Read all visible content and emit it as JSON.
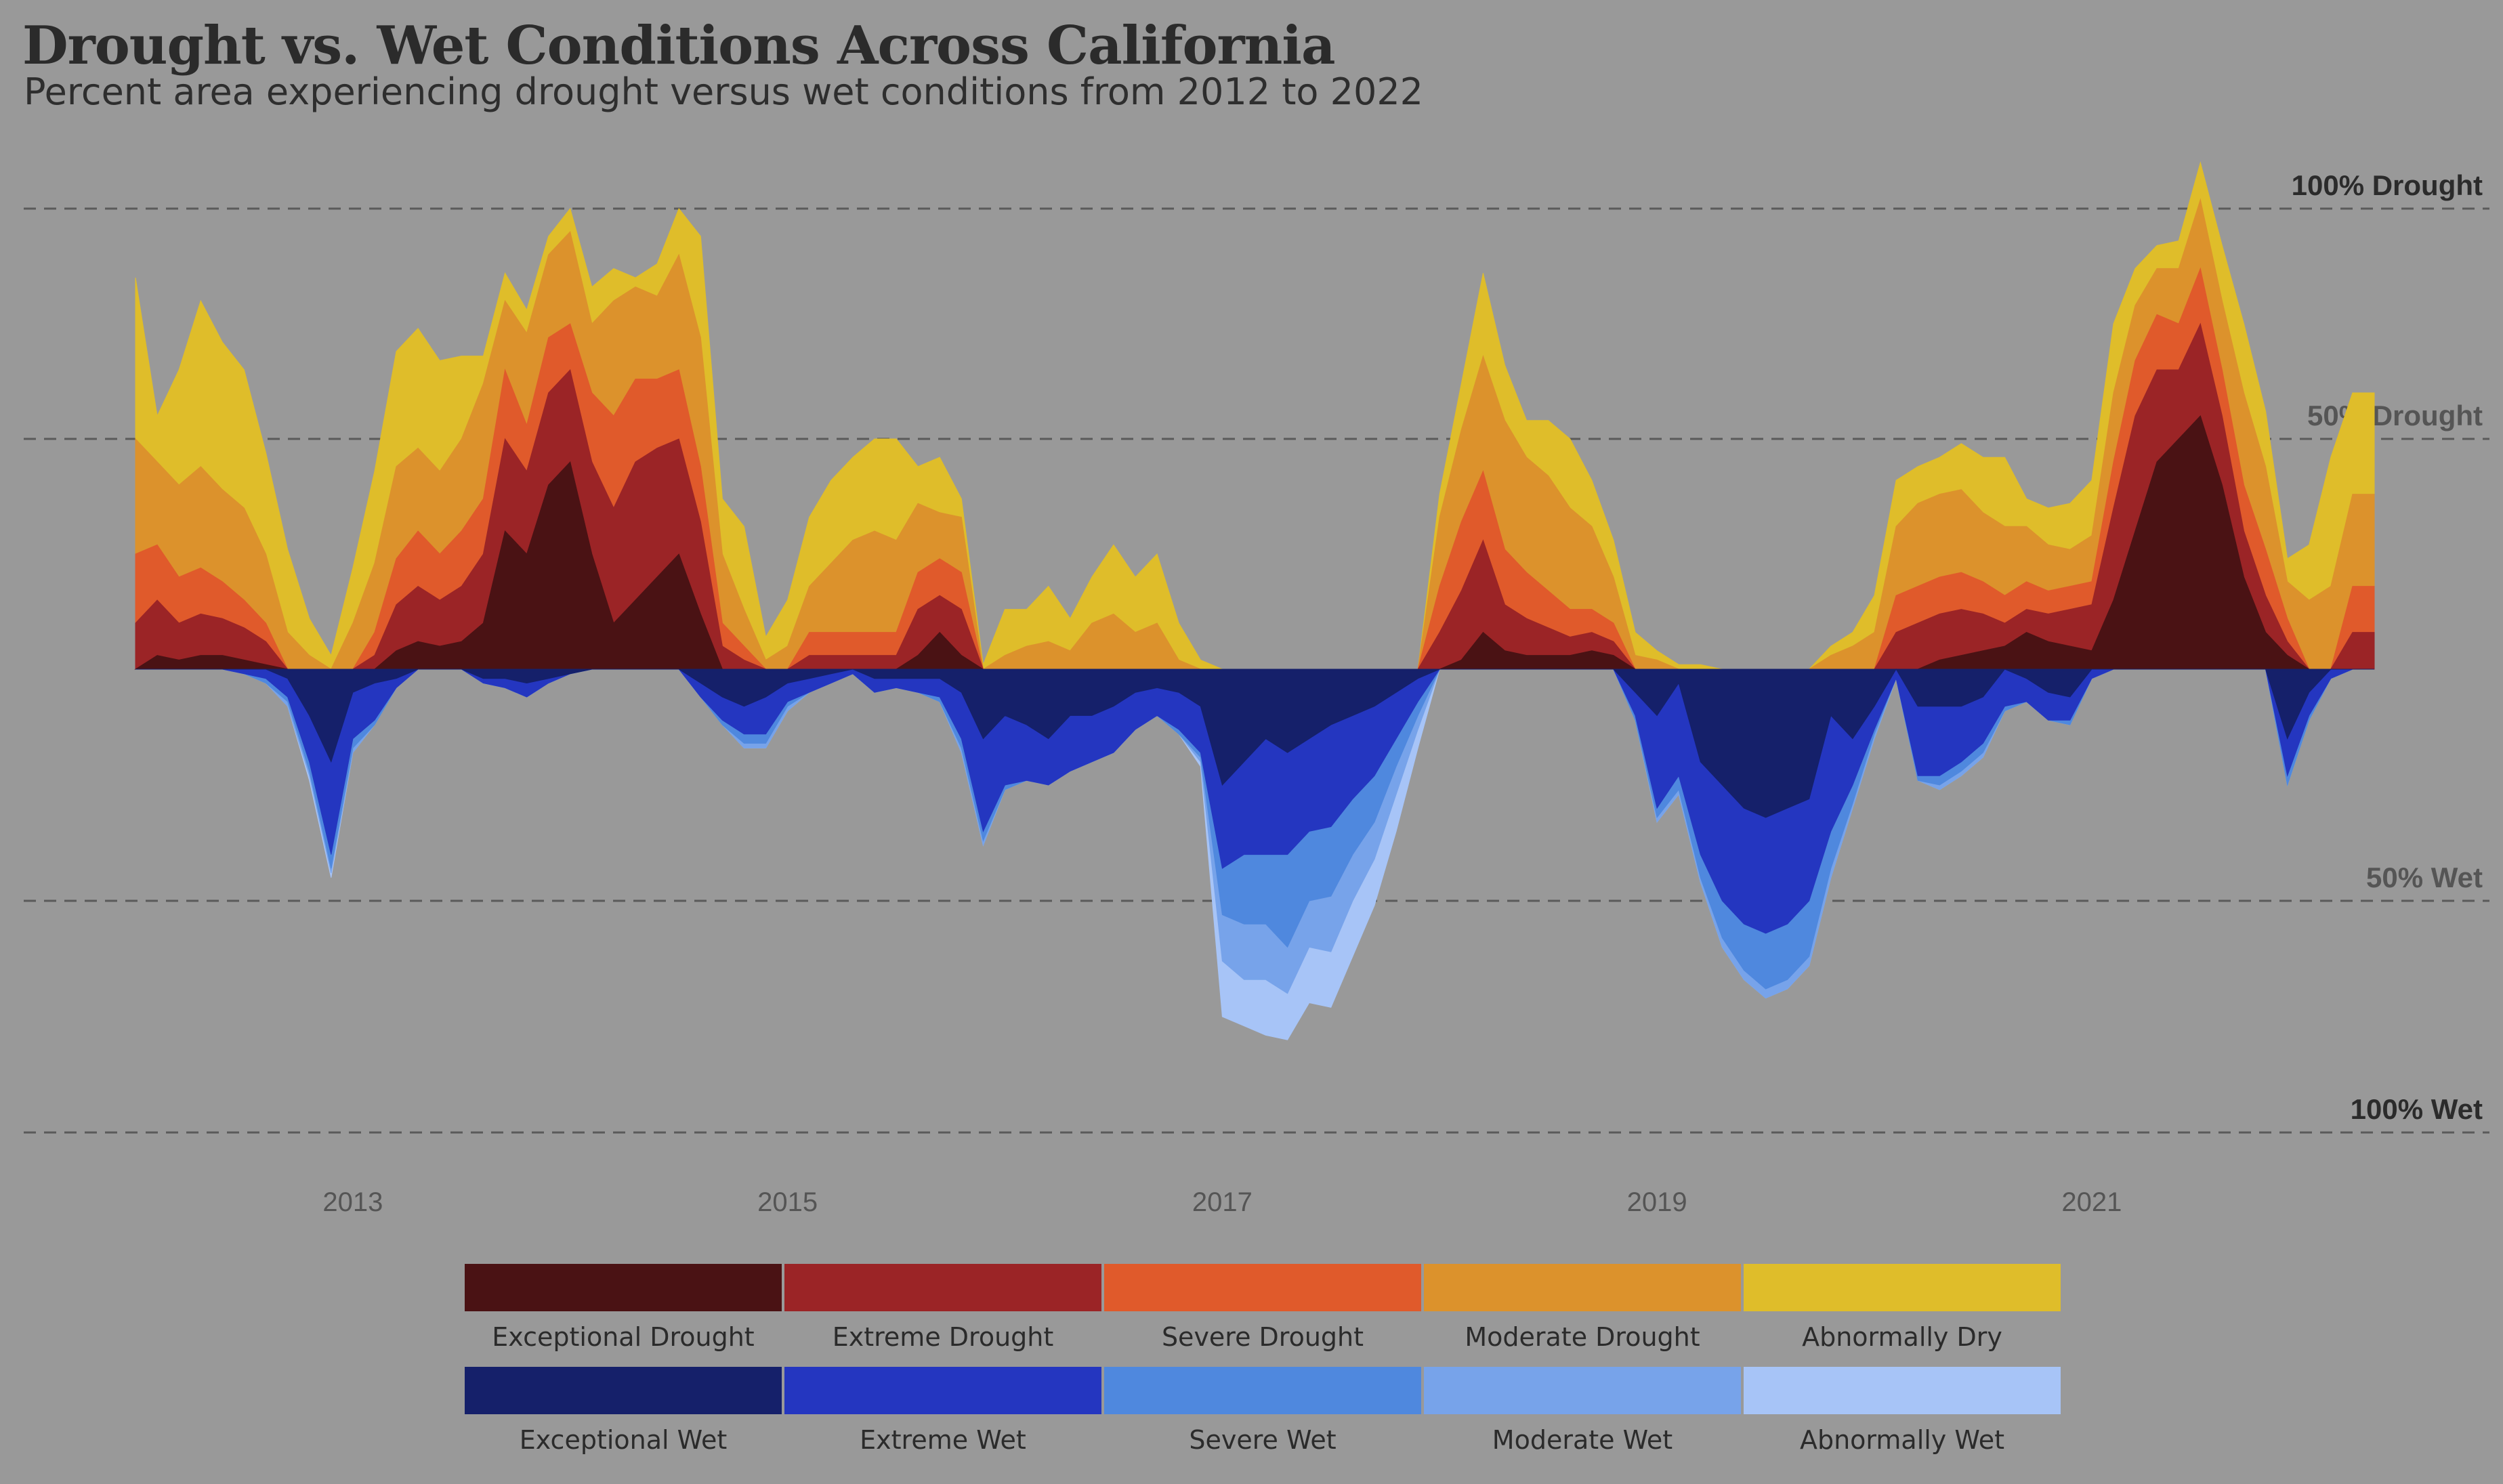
{
  "chart_data": {
    "type": "area",
    "title": "Drought vs. Wet Conditions Across California",
    "subtitle": "Percent area experiencing drought versus wet conditions from 2012 to 2022",
    "xlim": [
      2012,
      2022.3
    ],
    "ylim": [
      -100,
      100
    ],
    "x_ticks": [
      "2013",
      "2015",
      "2017",
      "2019",
      "2021"
    ],
    "grid_lines": [
      {
        "value": 100,
        "label": "100% Drought",
        "color": "#2b2b2b"
      },
      {
        "value": 50,
        "label": "50% Drought",
        "color": "#555555"
      },
      {
        "value": -50,
        "label": "50% Wet",
        "color": "#555555"
      },
      {
        "value": -100,
        "label": "100% Wet",
        "color": "#2b2b2b"
      }
    ],
    "x": [
      2012.0,
      2012.1,
      2012.2,
      2012.3,
      2012.4,
      2012.5,
      2012.6,
      2012.7,
      2012.8,
      2012.9,
      2013.0,
      2013.1,
      2013.2,
      2013.3,
      2013.4,
      2013.5,
      2013.6,
      2013.7,
      2013.8,
      2013.9,
      2014.0,
      2014.1,
      2014.2,
      2014.3,
      2014.4,
      2014.5,
      2014.6,
      2014.7,
      2014.8,
      2014.9,
      2015.0,
      2015.1,
      2015.2,
      2015.3,
      2015.4,
      2015.5,
      2015.6,
      2015.7,
      2015.8,
      2015.9,
      2016.0,
      2016.1,
      2016.2,
      2016.3,
      2016.4,
      2016.5,
      2016.6,
      2016.7,
      2016.8,
      2016.9,
      2017.0,
      2017.1,
      2017.2,
      2017.3,
      2017.4,
      2017.5,
      2017.6,
      2017.7,
      2017.8,
      2017.9,
      2018.0,
      2018.1,
      2018.2,
      2018.3,
      2018.4,
      2018.5,
      2018.6,
      2018.7,
      2018.8,
      2018.9,
      2019.0,
      2019.1,
      2019.2,
      2019.3,
      2019.4,
      2019.5,
      2019.6,
      2019.7,
      2019.8,
      2019.9,
      2020.0,
      2020.1,
      2020.2,
      2020.3,
      2020.4,
      2020.5,
      2020.6,
      2020.7,
      2020.8,
      2020.9,
      2021.0,
      2021.1,
      2021.2,
      2021.3,
      2021.4,
      2021.5,
      2021.6,
      2021.7,
      2021.8,
      2021.9,
      2022.0,
      2022.1,
      2022.2,
      2022.3
    ],
    "series_drought": [
      {
        "name": "Exceptional Drought",
        "color": "#4a1214",
        "values": [
          0,
          3,
          2,
          3,
          3,
          2,
          1,
          0,
          0,
          0,
          0,
          0,
          4,
          6,
          5,
          6,
          10,
          30,
          25,
          40,
          45,
          25,
          10,
          15,
          20,
          25,
          12,
          0,
          0,
          0,
          0,
          0,
          0,
          0,
          0,
          0,
          3,
          8,
          3,
          0,
          0,
          0,
          0,
          0,
          0,
          0,
          0,
          0,
          0,
          0,
          0,
          0,
          0,
          0,
          0,
          0,
          0,
          0,
          0,
          0,
          0,
          2,
          8,
          4,
          3,
          3,
          3,
          4,
          3,
          0,
          0,
          0,
          0,
          0,
          0,
          0,
          0,
          0,
          0,
          0,
          0,
          0,
          0,
          2,
          3,
          4,
          5,
          8,
          6,
          5,
          4,
          15,
          30,
          45,
          50,
          55,
          40,
          20,
          8,
          3,
          0,
          0,
          0,
          0
        ]
      },
      {
        "name": "Extreme Drought",
        "color": "#9b2426",
        "values": [
          10,
          12,
          8,
          9,
          8,
          7,
          5,
          0,
          0,
          0,
          0,
          3,
          10,
          12,
          10,
          12,
          15,
          20,
          18,
          20,
          20,
          20,
          25,
          30,
          28,
          25,
          20,
          5,
          2,
          0,
          0,
          3,
          3,
          3,
          3,
          3,
          10,
          8,
          10,
          0,
          0,
          0,
          0,
          0,
          0,
          0,
          0,
          0,
          0,
          0,
          0,
          0,
          0,
          0,
          0,
          0,
          0,
          0,
          0,
          0,
          8,
          15,
          20,
          10,
          8,
          6,
          4,
          4,
          3,
          0,
          0,
          0,
          0,
          0,
          0,
          0,
          0,
          0,
          0,
          0,
          0,
          8,
          10,
          10,
          10,
          8,
          5,
          5,
          6,
          8,
          10,
          20,
          25,
          20,
          15,
          20,
          15,
          10,
          8,
          3,
          0,
          0,
          8,
          8
        ]
      },
      {
        "name": "Severe Drought",
        "color": "#e05a2b",
        "values": [
          15,
          12,
          10,
          10,
          8,
          6,
          4,
          0,
          0,
          0,
          0,
          5,
          10,
          12,
          10,
          12,
          12,
          15,
          10,
          12,
          10,
          15,
          20,
          18,
          15,
          15,
          12,
          5,
          3,
          0,
          0,
          5,
          5,
          5,
          5,
          5,
          8,
          8,
          8,
          0,
          0,
          0,
          0,
          0,
          0,
          0,
          0,
          0,
          0,
          0,
          0,
          0,
          0,
          0,
          0,
          0,
          0,
          0,
          0,
          0,
          10,
          15,
          15,
          12,
          10,
          8,
          6,
          5,
          4,
          0,
          0,
          0,
          0,
          0,
          0,
          0,
          0,
          0,
          0,
          0,
          0,
          8,
          8,
          8,
          8,
          7,
          6,
          6,
          5,
          5,
          5,
          10,
          12,
          12,
          10,
          12,
          10,
          10,
          10,
          5,
          0,
          0,
          10,
          10
        ]
      },
      {
        "name": "Moderate Drought",
        "color": "#dc922c",
        "values": [
          25,
          18,
          20,
          22,
          20,
          20,
          15,
          8,
          3,
          0,
          10,
          15,
          20,
          18,
          18,
          20,
          25,
          15,
          20,
          18,
          20,
          15,
          25,
          20,
          18,
          25,
          28,
          15,
          8,
          2,
          5,
          10,
          15,
          20,
          22,
          20,
          15,
          10,
          12,
          0,
          3,
          5,
          6,
          4,
          10,
          12,
          8,
          10,
          2,
          0,
          0,
          0,
          0,
          0,
          0,
          0,
          0,
          0,
          0,
          0,
          15,
          20,
          25,
          28,
          25,
          25,
          22,
          18,
          10,
          3,
          2,
          0,
          0,
          0,
          0,
          0,
          0,
          0,
          3,
          5,
          8,
          15,
          18,
          18,
          18,
          15,
          15,
          12,
          10,
          8,
          10,
          15,
          12,
          10,
          12,
          15,
          15,
          20,
          18,
          8,
          15,
          18,
          20,
          20
        ]
      },
      {
        "name": "Abnormally Dry",
        "color": "#dfbd2a",
        "values": [
          35,
          10,
          25,
          36,
          32,
          30,
          22,
          18,
          8,
          3,
          12,
          20,
          25,
          26,
          24,
          18,
          6,
          6,
          5,
          4,
          5,
          8,
          7,
          2,
          7,
          10,
          22,
          12,
          18,
          5,
          10,
          15,
          18,
          18,
          20,
          22,
          8,
          12,
          4,
          1,
          10,
          8,
          12,
          7,
          10,
          15,
          12,
          15,
          8,
          2,
          0,
          0,
          0,
          0,
          0,
          0,
          0,
          0,
          0,
          0,
          5,
          10,
          18,
          12,
          8,
          12,
          15,
          10,
          8,
          5,
          2,
          1,
          1,
          0,
          0,
          0,
          0,
          0,
          2,
          3,
          8,
          10,
          8,
          8,
          10,
          12,
          15,
          6,
          8,
          10,
          12,
          15,
          8,
          5,
          6,
          8,
          12,
          15,
          12,
          5,
          12,
          28,
          22,
          22
        ]
      }
    ],
    "series_wet": [
      {
        "name": "Exceptional Wet",
        "color": "#15206a",
        "values": [
          0,
          0,
          0,
          0,
          0,
          0,
          0,
          2,
          10,
          20,
          5,
          3,
          2,
          0,
          0,
          0,
          2,
          2,
          3,
          2,
          1,
          0,
          0,
          0,
          0,
          0,
          3,
          6,
          8,
          6,
          3,
          2,
          1,
          0,
          2,
          2,
          2,
          2,
          5,
          15,
          10,
          12,
          15,
          10,
          10,
          8,
          5,
          4,
          5,
          8,
          25,
          20,
          15,
          18,
          15,
          12,
          10,
          8,
          5,
          2,
          0,
          0,
          0,
          0,
          0,
          0,
          0,
          0,
          0,
          5,
          10,
          3,
          20,
          25,
          30,
          32,
          30,
          28,
          10,
          15,
          8,
          0,
          8,
          8,
          8,
          6,
          0,
          2,
          5,
          6,
          0,
          0,
          0,
          0,
          0,
          0,
          0,
          0,
          0,
          15,
          5,
          0,
          0,
          0
        ]
      },
      {
        "name": "Extreme Wet",
        "color": "#2436c0",
        "values": [
          0,
          0,
          0,
          0,
          0,
          1,
          2,
          4,
          10,
          20,
          10,
          8,
          2,
          0,
          0,
          0,
          1,
          2,
          3,
          1,
          0,
          0,
          0,
          0,
          0,
          0,
          3,
          5,
          6,
          8,
          4,
          3,
          2,
          1,
          3,
          2,
          3,
          4,
          10,
          20,
          15,
          12,
          10,
          12,
          10,
          10,
          8,
          6,
          8,
          10,
          18,
          20,
          25,
          22,
          20,
          22,
          18,
          15,
          10,
          5,
          0,
          0,
          0,
          0,
          0,
          0,
          0,
          0,
          0,
          5,
          20,
          20,
          20,
          25,
          25,
          25,
          25,
          22,
          25,
          10,
          5,
          2,
          15,
          15,
          12,
          10,
          8,
          5,
          6,
          5,
          2,
          0,
          0,
          0,
          0,
          0,
          0,
          0,
          0,
          8,
          5,
          2,
          0,
          0
        ]
      },
      {
        "name": "Severe Wet",
        "color": "#4f88de",
        "values": [
          0,
          0,
          0,
          0,
          0,
          0,
          1,
          1,
          2,
          3,
          2,
          1,
          0,
          0,
          0,
          0,
          0,
          0,
          0,
          0,
          0,
          0,
          0,
          0,
          0,
          0,
          0,
          1,
          2,
          2,
          1,
          0,
          0,
          0,
          0,
          0,
          0,
          1,
          2,
          2,
          1,
          0,
          0,
          0,
          0,
          0,
          0,
          0,
          1,
          1,
          10,
          15,
          15,
          20,
          15,
          15,
          12,
          10,
          6,
          3,
          0,
          0,
          0,
          0,
          0,
          0,
          0,
          0,
          0,
          1,
          2,
          3,
          5,
          8,
          10,
          12,
          12,
          12,
          8,
          4,
          1,
          0,
          1,
          2,
          2,
          2,
          1,
          0,
          0,
          1,
          0,
          0,
          0,
          0,
          0,
          0,
          0,
          0,
          0,
          2,
          1,
          0,
          0,
          0
        ]
      },
      {
        "name": "Moderate Wet",
        "color": "#77a3ea",
        "values": [
          0,
          0,
          0,
          0,
          0,
          0,
          0,
          1,
          1,
          1,
          1,
          0,
          0,
          0,
          0,
          0,
          0,
          0,
          0,
          0,
          0,
          0,
          0,
          0,
          0,
          0,
          0,
          0,
          1,
          1,
          1,
          0,
          0,
          0,
          0,
          0,
          0,
          0,
          1,
          1,
          0,
          0,
          0,
          0,
          0,
          0,
          0,
          0,
          0,
          1,
          10,
          12,
          12,
          10,
          10,
          12,
          10,
          8,
          6,
          3,
          0,
          0,
          0,
          0,
          0,
          0,
          0,
          0,
          0,
          0,
          1,
          1,
          1,
          2,
          2,
          2,
          2,
          2,
          2,
          1,
          1,
          0,
          0,
          1,
          1,
          1,
          0,
          0,
          0,
          0,
          0,
          0,
          0,
          0,
          0,
          0,
          0,
          0,
          0,
          0,
          0,
          0,
          0,
          0
        ]
      },
      {
        "name": "Abnormally Wet",
        "color": "#a7c4f7",
        "values": [
          0,
          0,
          0,
          0,
          0,
          0,
          0,
          0,
          1,
          1,
          0,
          0,
          0,
          0,
          0,
          0,
          0,
          0,
          0,
          0,
          0,
          0,
          0,
          0,
          0,
          0,
          0,
          0,
          0,
          0,
          0,
          0,
          0,
          0,
          0,
          0,
          0,
          0,
          0,
          0,
          0,
          0,
          0,
          0,
          0,
          0,
          0,
          0,
          0,
          1,
          12,
          10,
          12,
          10,
          12,
          12,
          12,
          10,
          8,
          4,
          0,
          0,
          0,
          0,
          0,
          0,
          0,
          0,
          0,
          0,
          0,
          0,
          0,
          0,
          0,
          0,
          0,
          0,
          0,
          0,
          0,
          0,
          0,
          0,
          0,
          0,
          0,
          0,
          0,
          0,
          0,
          0,
          0,
          0,
          0,
          0,
          0,
          0,
          0,
          0,
          0,
          0,
          0,
          0
        ]
      }
    ],
    "legend": {
      "rows": [
        [
          {
            "label": "Exceptional Drought",
            "color": "#4a1214"
          },
          {
            "label": "Extreme Drought",
            "color": "#9b2426"
          },
          {
            "label": "Severe Drought",
            "color": "#e05a2b"
          },
          {
            "label": "Moderate Drought",
            "color": "#dc922c"
          },
          {
            "label": "Abnormally Dry",
            "color": "#dfbd2a"
          }
        ],
        [
          {
            "label": "Exceptional Wet",
            "color": "#15206a"
          },
          {
            "label": "Extreme Wet",
            "color": "#2436c0"
          },
          {
            "label": "Severe Wet",
            "color": "#4f88de"
          },
          {
            "label": "Moderate Wet",
            "color": "#77a3ea"
          },
          {
            "label": "Abnormally Wet",
            "color": "#a7c4f7"
          }
        ]
      ]
    },
    "background": "#999999"
  }
}
